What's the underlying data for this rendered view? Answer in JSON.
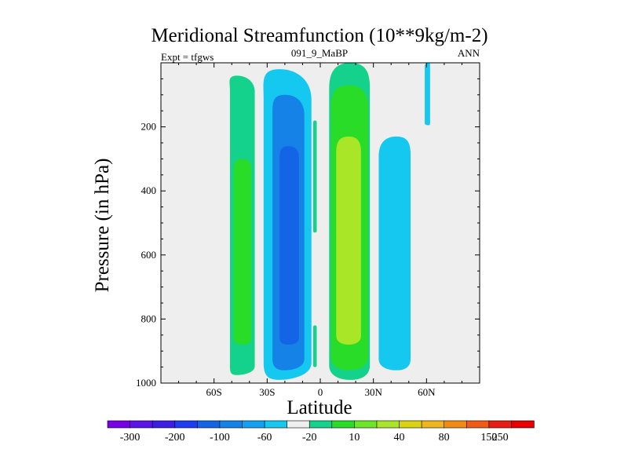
{
  "chart_data": {
    "type": "contour",
    "title": "Meridional Streamfunction (10**9kg/m-2)",
    "left_string": "Expt = tfgws",
    "center_string": "091_9_MaBP",
    "right_string": "ANN",
    "xlabel": "Latitude",
    "ylabel": "Pressure (in hPa)",
    "xlim": [
      -90,
      90
    ],
    "ylim": [
      1000,
      0
    ],
    "x_ticks": [
      {
        "value": -60,
        "label": "60S"
      },
      {
        "value": -30,
        "label": "30S"
      },
      {
        "value": 0,
        "label": "0"
      },
      {
        "value": 30,
        "label": "30N"
      },
      {
        "value": 60,
        "label": "60N"
      }
    ],
    "y_ticks": [
      {
        "value": 200,
        "label": "200"
      },
      {
        "value": 400,
        "label": "400"
      },
      {
        "value": 600,
        "label": "600"
      },
      {
        "value": 800,
        "label": "800"
      },
      {
        "value": 1000,
        "label": "1000"
      }
    ],
    "colorbar": {
      "colors": [
        "#7a00e6",
        "#5a14e6",
        "#3c1ee6",
        "#1e3cf0",
        "#1464e6",
        "#1482e6",
        "#14a0f0",
        "#14c8f0",
        "#eeeeee",
        "#14d28c",
        "#28dc28",
        "#6ee628",
        "#aae628",
        "#dcd214",
        "#f0b41e",
        "#f08c14",
        "#f05a14",
        "#e61e14",
        "#e60000"
      ],
      "labels": [
        "-300",
        "-200",
        "-100",
        "-60",
        "-20",
        "10",
        "40",
        "80",
        "150",
        "250"
      ],
      "label_boundaries": [
        1,
        3,
        5,
        7,
        9,
        11,
        13,
        15,
        17
      ]
    },
    "cells": [
      {
        "name": "sh-ferrel-outer",
        "level": "10",
        "lat": [
          -51,
          -37
        ],
        "p": [
          40,
          975
        ],
        "peak_lat": -47
      },
      {
        "name": "sh-ferrel-inner",
        "level": "40",
        "lat": [
          -49,
          -39
        ],
        "p": [
          300,
          880
        ],
        "peak_lat": -44
      },
      {
        "name": "sh-hadley-outer",
        "level": "-20",
        "lat": [
          -32,
          -5
        ],
        "p": [
          20,
          990
        ],
        "peak_lat": -23
      },
      {
        "name": "sh-hadley-mid",
        "level": "-60",
        "lat": [
          -27,
          -9
        ],
        "p": [
          100,
          960
        ],
        "peak_lat": -20
      },
      {
        "name": "sh-hadley-inner",
        "level": "-100",
        "lat": [
          -23,
          -12
        ],
        "p": [
          260,
          880
        ],
        "peak_lat": -18
      },
      {
        "name": "eq-sliver-upper",
        "level": "10",
        "lat": [
          -4,
          -2
        ],
        "p": [
          180,
          530
        ],
        "peak_lat": -3
      },
      {
        "name": "eq-sliver-lower",
        "level": "10",
        "lat": [
          -4,
          -2
        ],
        "p": [
          820,
          950
        ],
        "peak_lat": -3
      },
      {
        "name": "nh-hadley-outer",
        "level": "10",
        "lat": [
          5,
          28
        ],
        "p": [
          0,
          990
        ],
        "peak_lat": 17
      },
      {
        "name": "nh-hadley-mid",
        "level": "40",
        "lat": [
          6,
          27
        ],
        "p": [
          70,
          960
        ],
        "peak_lat": 16
      },
      {
        "name": "nh-hadley-inner",
        "level": "80",
        "lat": [
          9,
          23
        ],
        "p": [
          230,
          880
        ],
        "peak_lat": 16
      },
      {
        "name": "nh-ferrel",
        "level": "-20",
        "lat": [
          33,
          51
        ],
        "p": [
          230,
          960
        ],
        "peak_lat": 43
      },
      {
        "name": "nh-upper-cell",
        "level": "-20",
        "lat": [
          59,
          62
        ],
        "p": [
          0,
          195
        ],
        "peak_lat": 61
      }
    ]
  }
}
